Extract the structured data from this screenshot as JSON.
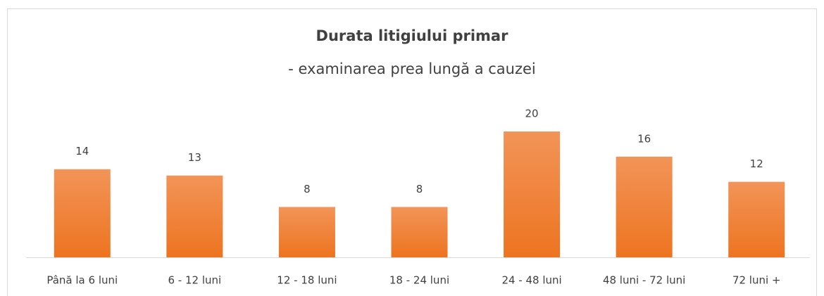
{
  "chart_data": {
    "type": "bar",
    "title": "Durata litigiului primar",
    "subtitle": "- examinarea prea lungă a cauzei",
    "categories": [
      "Până la 6 luni",
      "6 - 12 luni",
      "12 - 18 luni",
      "18 - 24 luni",
      "24 - 48 luni",
      "48 luni - 72 luni",
      "72 luni +"
    ],
    "values": [
      14,
      13,
      8,
      8,
      20,
      16,
      12
    ],
    "color": "#ed7d31"
  }
}
